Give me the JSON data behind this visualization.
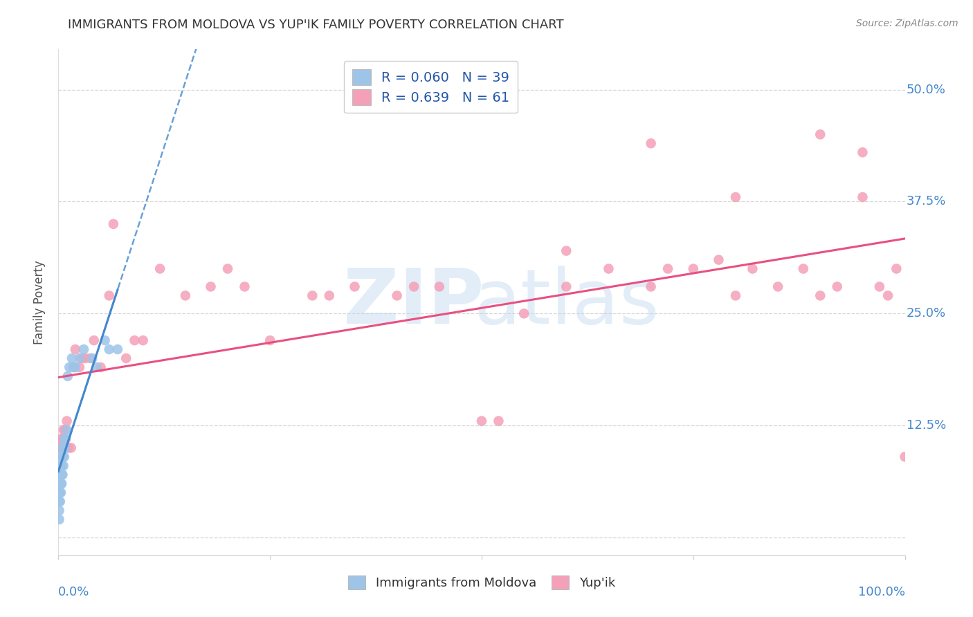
{
  "title": "IMMIGRANTS FROM MOLDOVA VS YUP'IK FAMILY POVERTY CORRELATION CHART",
  "source": "Source: ZipAtlas.com",
  "ylabel": "Family Poverty",
  "yticks": [
    0.0,
    0.125,
    0.25,
    0.375,
    0.5
  ],
  "ytick_labels": [
    "",
    "12.5%",
    "25.0%",
    "37.5%",
    "50.0%"
  ],
  "color_moldova": "#9ec4e8",
  "color_yupik": "#f4a0b8",
  "color_moldova_line": "#4488cc",
  "color_yupik_line": "#e85080",
  "color_tick_labels": "#4488cc",
  "color_title": "#333333",
  "color_source": "#888888",
  "moldova_x": [
    0.001,
    0.001,
    0.001,
    0.001,
    0.002,
    0.002,
    0.002,
    0.002,
    0.002,
    0.003,
    0.003,
    0.003,
    0.003,
    0.004,
    0.004,
    0.004,
    0.004,
    0.005,
    0.005,
    0.005,
    0.006,
    0.006,
    0.007,
    0.007,
    0.008,
    0.009,
    0.01,
    0.011,
    0.013,
    0.016,
    0.018,
    0.02,
    0.025,
    0.03,
    0.04,
    0.045,
    0.055,
    0.06,
    0.07
  ],
  "moldova_y": [
    0.02,
    0.03,
    0.04,
    0.05,
    0.04,
    0.05,
    0.06,
    0.07,
    0.08,
    0.05,
    0.06,
    0.07,
    0.08,
    0.06,
    0.07,
    0.08,
    0.09,
    0.07,
    0.09,
    0.1,
    0.08,
    0.1,
    0.09,
    0.11,
    0.1,
    0.11,
    0.12,
    0.18,
    0.19,
    0.2,
    0.19,
    0.19,
    0.2,
    0.21,
    0.2,
    0.19,
    0.22,
    0.21,
    0.21
  ],
  "yupik_x": [
    0.001,
    0.002,
    0.003,
    0.004,
    0.005,
    0.006,
    0.007,
    0.008,
    0.009,
    0.01,
    0.012,
    0.015,
    0.018,
    0.02,
    0.025,
    0.028,
    0.032,
    0.038,
    0.042,
    0.05,
    0.06,
    0.065,
    0.08,
    0.09,
    0.1,
    0.12,
    0.15,
    0.18,
    0.2,
    0.22,
    0.25,
    0.3,
    0.32,
    0.35,
    0.4,
    0.42,
    0.45,
    0.5,
    0.52,
    0.55,
    0.6,
    0.65,
    0.7,
    0.72,
    0.75,
    0.78,
    0.8,
    0.82,
    0.85,
    0.88,
    0.9,
    0.92,
    0.95,
    0.97,
    0.98,
    0.99,
    1.0,
    0.6,
    0.7,
    0.8,
    0.9,
    0.95
  ],
  "yupik_y": [
    0.1,
    0.1,
    0.11,
    0.1,
    0.11,
    0.12,
    0.11,
    0.12,
    0.1,
    0.13,
    0.1,
    0.1,
    0.19,
    0.21,
    0.19,
    0.2,
    0.2,
    0.2,
    0.22,
    0.19,
    0.27,
    0.35,
    0.2,
    0.22,
    0.22,
    0.3,
    0.27,
    0.28,
    0.3,
    0.28,
    0.22,
    0.27,
    0.27,
    0.28,
    0.27,
    0.28,
    0.28,
    0.13,
    0.13,
    0.25,
    0.28,
    0.3,
    0.28,
    0.3,
    0.3,
    0.31,
    0.27,
    0.3,
    0.28,
    0.3,
    0.27,
    0.28,
    0.38,
    0.28,
    0.27,
    0.3,
    0.09,
    0.32,
    0.44,
    0.38,
    0.45,
    0.43
  ],
  "xlim": [
    0.0,
    1.0
  ],
  "ylim": [
    -0.02,
    0.545
  ],
  "moldova_line_y0": 0.095,
  "moldova_line_y1": 0.215,
  "yupik_line_y0": 0.115,
  "yupik_line_y1": 0.335
}
